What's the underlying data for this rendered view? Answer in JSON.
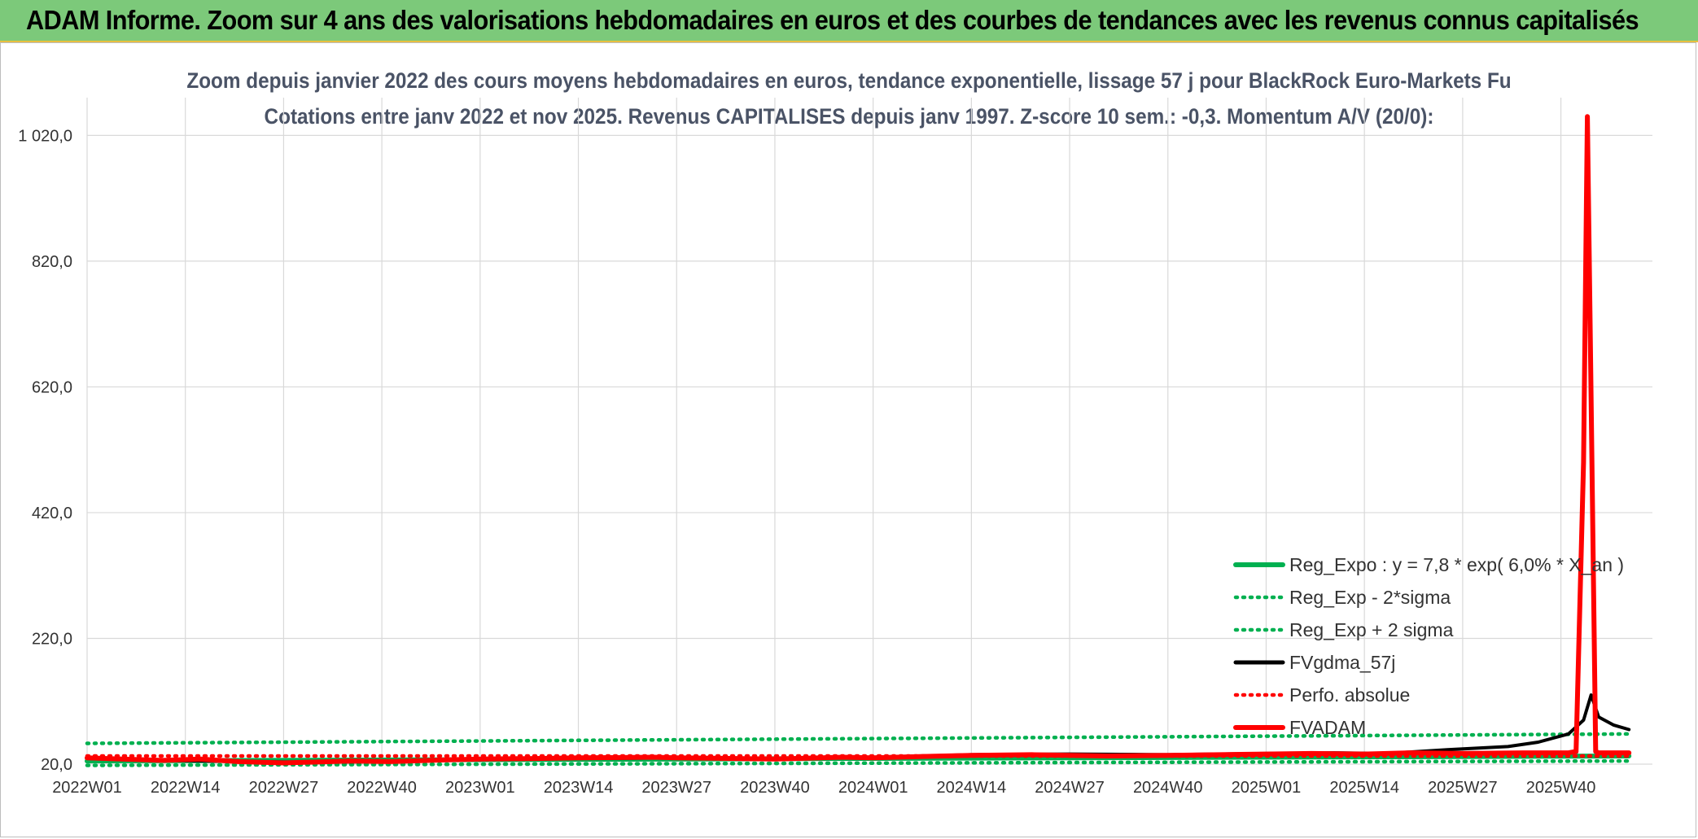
{
  "header": {
    "title": "ADAM Informe. Zoom sur 4 ans des valorisations hebdomadaires en euros et des courbes de tendances avec les revenus connus capitalisés"
  },
  "chart_data": {
    "type": "line",
    "title": "Zoom depuis janvier 2022 des cours moyens hebdomadaires en euros, tendance exponentielle, lissage 57 j pour BlackRock Euro-Markets Fu",
    "subtitle": "Cotations entre janv 2022 et nov 2025. Revenus CAPITALISES depuis janv 1997. Z-score 10 sem.: -0,3. Momentum A/V (20/0):",
    "xlabel": "",
    "ylabel": "",
    "ylim": [
      20,
      1080
    ],
    "y_ticks": [
      "20,0",
      "220,0",
      "420,0",
      "620,0",
      "820,0",
      "1 020,0"
    ],
    "y_tick_values": [
      20,
      220,
      420,
      620,
      820,
      1020
    ],
    "x_ticks": [
      "2022W01",
      "2022W14",
      "2022W27",
      "2022W40",
      "2023W01",
      "2023W14",
      "2023W27",
      "2023W40",
      "2024W01",
      "2024W14",
      "2024W27",
      "2024W40",
      "2025W01",
      "2025W14",
      "2025W27",
      "2025W40"
    ],
    "x_tick_index": [
      0,
      13,
      26,
      39,
      52,
      65,
      78,
      91,
      104,
      117,
      130,
      143,
      156,
      169,
      182,
      195
    ],
    "n_weeks": 205,
    "grid": true,
    "legend_position": "bottom-right",
    "series": [
      {
        "name": "Reg_Expo : y = 7,8 * exp( 6,0% *  X_an )",
        "color": "#00b050",
        "style": "solid",
        "points": [
          [
            0,
            25
          ],
          [
            204,
            33
          ]
        ]
      },
      {
        "name": "Reg_Exp - 2*sigma",
        "color": "#00b050",
        "style": "dotted",
        "points": [
          [
            0,
            18
          ],
          [
            204,
            25
          ]
        ]
      },
      {
        "name": "Reg_Exp + 2 sigma",
        "color": "#00b050",
        "style": "dotted",
        "points": [
          [
            0,
            53
          ],
          [
            204,
            68
          ]
        ]
      },
      {
        "name": "FVgdma_57j",
        "color": "#000000",
        "style": "solid",
        "points": [
          [
            0,
            30
          ],
          [
            10,
            26
          ],
          [
            20,
            24
          ],
          [
            30,
            23
          ],
          [
            40,
            24
          ],
          [
            52,
            27
          ],
          [
            65,
            29
          ],
          [
            78,
            30
          ],
          [
            91,
            29
          ],
          [
            104,
            31
          ],
          [
            117,
            35
          ],
          [
            130,
            36
          ],
          [
            143,
            35
          ],
          [
            156,
            37
          ],
          [
            165,
            38
          ],
          [
            172,
            37
          ],
          [
            180,
            43
          ],
          [
            188,
            48
          ],
          [
            192,
            55
          ],
          [
            196,
            68
          ],
          [
            198,
            90
          ],
          [
            199,
            130
          ],
          [
            200,
            95
          ],
          [
            202,
            82
          ],
          [
            204,
            75
          ]
        ]
      },
      {
        "name": "Perfo. absolue",
        "color": "#ff0000",
        "style": "dotted",
        "points": [
          [
            0,
            33
          ],
          [
            204,
            33
          ]
        ]
      },
      {
        "name": "FVADAM",
        "color": "#ff0000",
        "style": "solid",
        "points": [
          [
            0,
            30
          ],
          [
            10,
            26
          ],
          [
            15,
            28
          ],
          [
            20,
            24
          ],
          [
            26,
            22
          ],
          [
            35,
            25
          ],
          [
            40,
            24
          ],
          [
            48,
            27
          ],
          [
            52,
            28
          ],
          [
            60,
            29
          ],
          [
            65,
            30
          ],
          [
            75,
            31
          ],
          [
            78,
            30
          ],
          [
            85,
            29
          ],
          [
            91,
            28
          ],
          [
            100,
            31
          ],
          [
            104,
            30
          ],
          [
            110,
            32
          ],
          [
            117,
            34
          ],
          [
            125,
            35
          ],
          [
            130,
            34
          ],
          [
            135,
            33
          ],
          [
            143,
            34
          ],
          [
            150,
            35
          ],
          [
            156,
            36
          ],
          [
            162,
            37
          ],
          [
            169,
            36
          ],
          [
            175,
            38
          ],
          [
            182,
            37
          ],
          [
            190,
            38
          ],
          [
            196,
            38
          ],
          [
            197,
            40
          ],
          [
            198,
            500
          ],
          [
            198.5,
            1050
          ],
          [
            199,
            600
          ],
          [
            199.6,
            40
          ],
          [
            200,
            38
          ],
          [
            204,
            38
          ]
        ]
      }
    ]
  }
}
